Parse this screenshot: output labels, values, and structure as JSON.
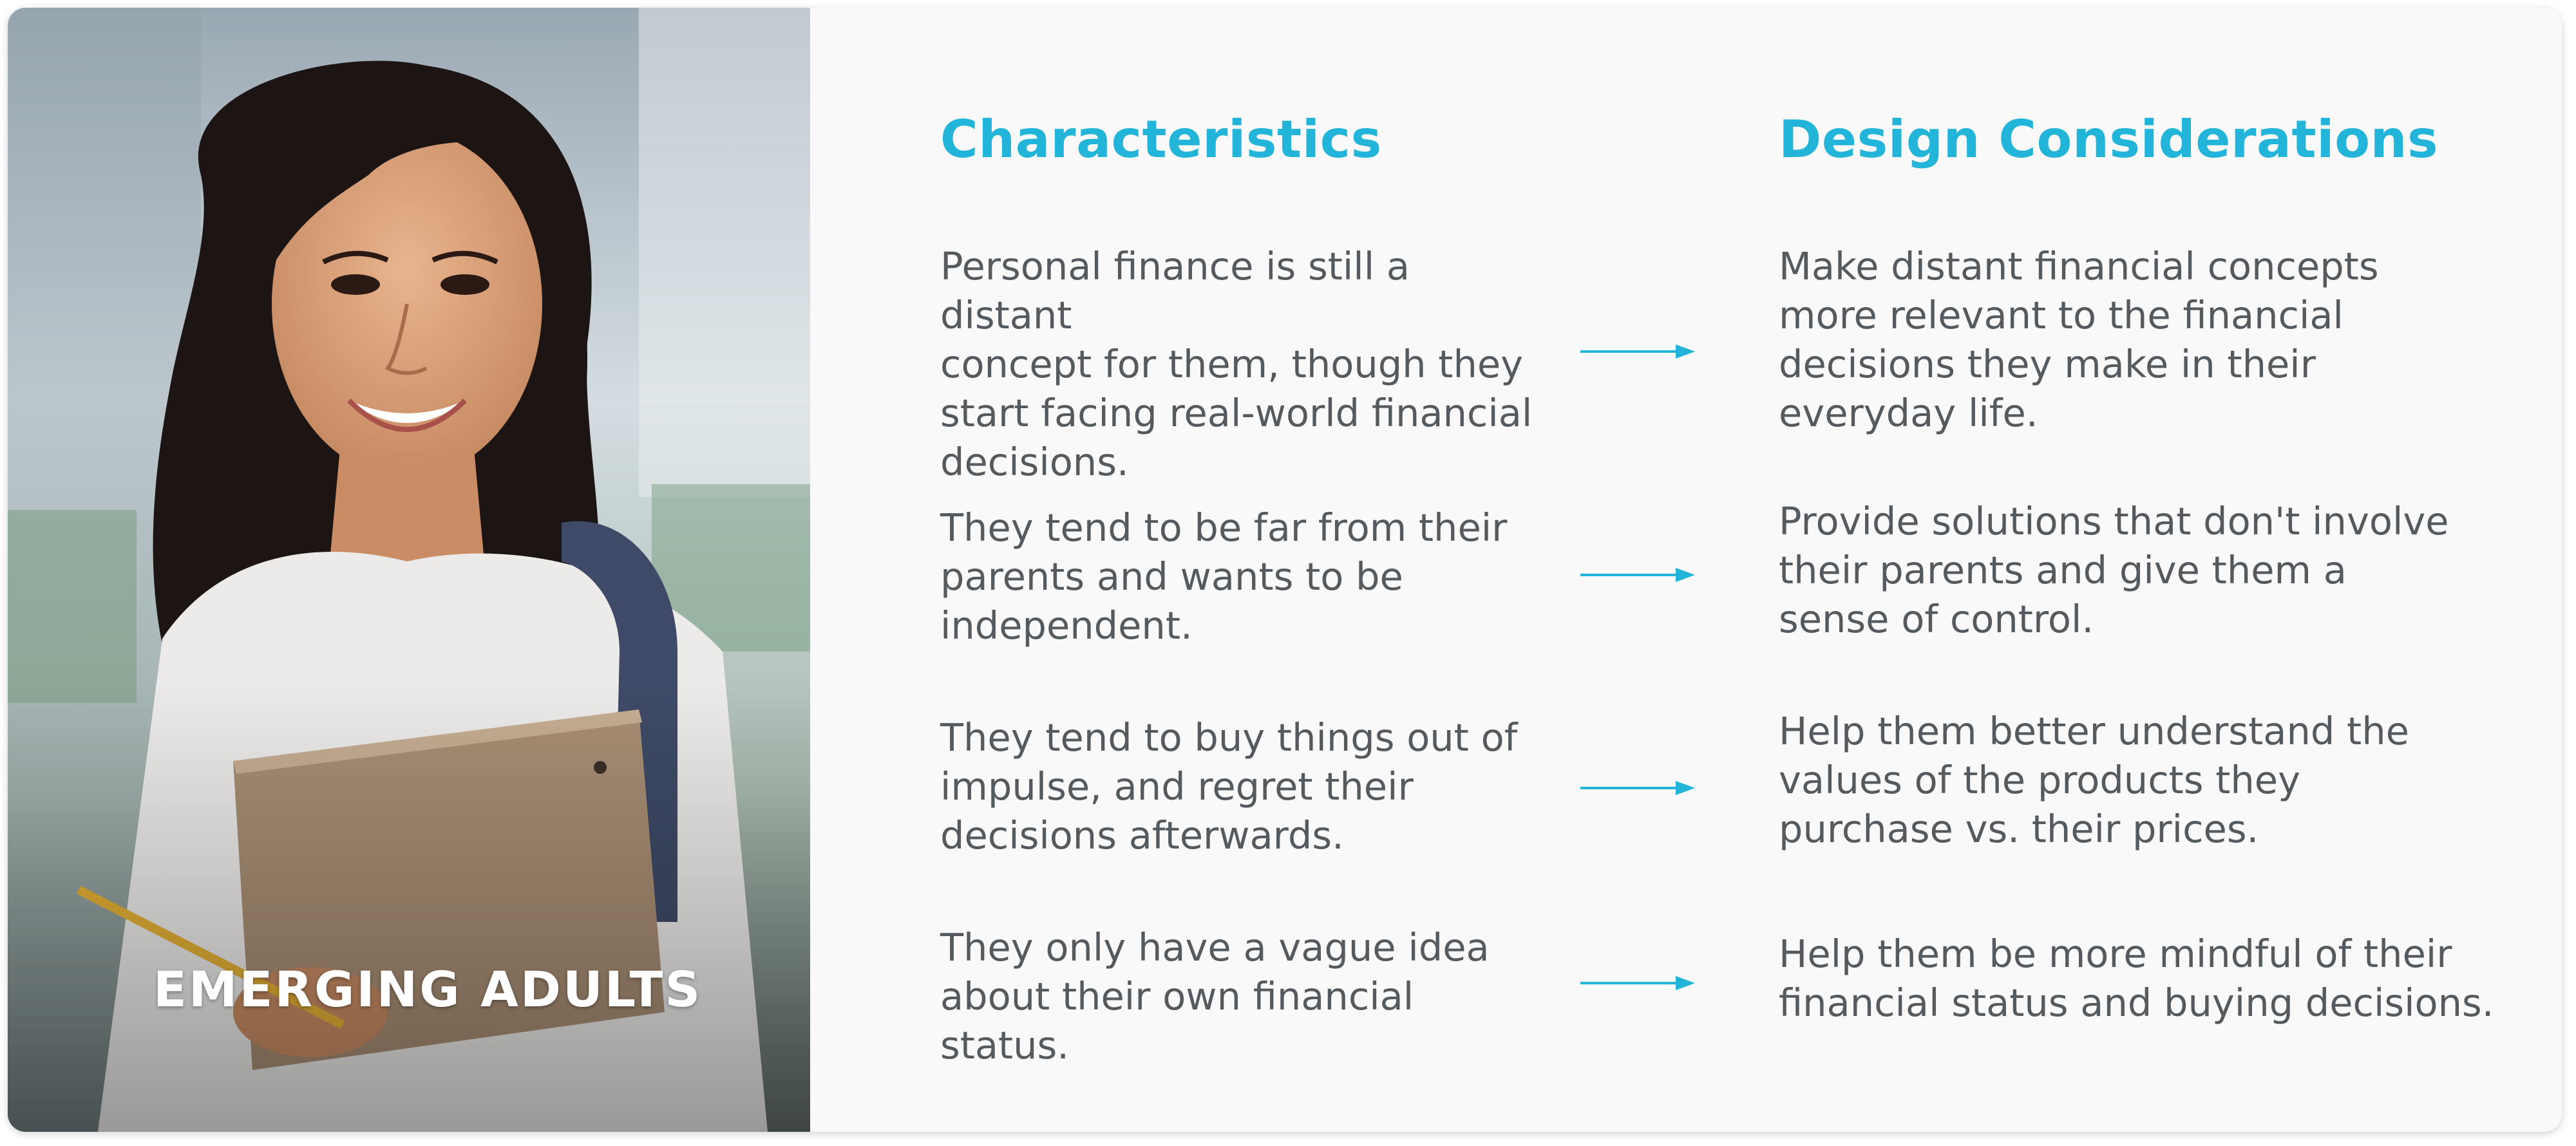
{
  "persona": {
    "label": "EMERGING ADULTS"
  },
  "columns": {
    "characteristics_heading": "Characteristics",
    "design_heading": "Design Considerations"
  },
  "rows": [
    {
      "characteristic": "Personal finance is still a distant\nconcept for them, though they\nstart facing real-world financial\ndecisions.",
      "design": "Make distant financial concepts\nmore relevant to the financial\ndecisions they make in their\neveryday life."
    },
    {
      "characteristic": "They tend to be far from their\nparents and wants to be\nindependent.",
      "design": "Provide solutions that don't involve\ntheir parents and give them a\nsense of control."
    },
    {
      "characteristic": "They tend to buy things out of\nimpulse, and regret their\ndecisions afterwards.",
      "design": "Help them better understand the\nvalues of the products they\npurchase vs. their prices."
    },
    {
      "characteristic": "They only have a vague idea\nabout their own financial status.",
      "design": "Help them be more mindful of their\nfinancial status and buying decisions."
    }
  ],
  "colors": {
    "accent": "#22b4d9",
    "body_text": "#555a5e",
    "panel_background": "#f9f9f9"
  },
  "icons": {
    "row_arrow": "arrow-right-icon"
  }
}
